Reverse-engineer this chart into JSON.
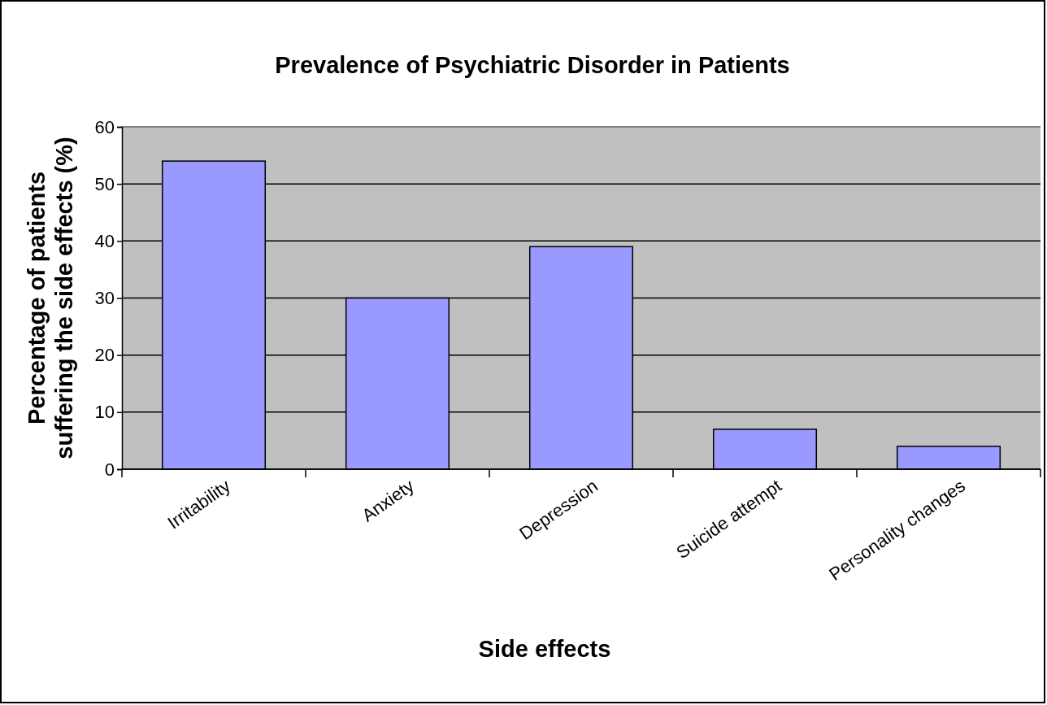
{
  "chart_data": {
    "type": "bar",
    "title": "Prevalence of Psychiatric Disorder in Patients",
    "xlabel": "Side effects",
    "ylabel": "Percentage of patients suffering the side effects (%)",
    "categories": [
      "Irritability",
      "Anxiety",
      "Depression",
      "Suicide attempt",
      "Personality changes"
    ],
    "values": [
      54,
      30,
      39,
      7,
      4
    ],
    "color": "#9999ff",
    "ylim": [
      0,
      60
    ],
    "yticks": [
      0,
      10,
      20,
      30,
      40,
      50,
      60
    ],
    "grid": "y"
  }
}
